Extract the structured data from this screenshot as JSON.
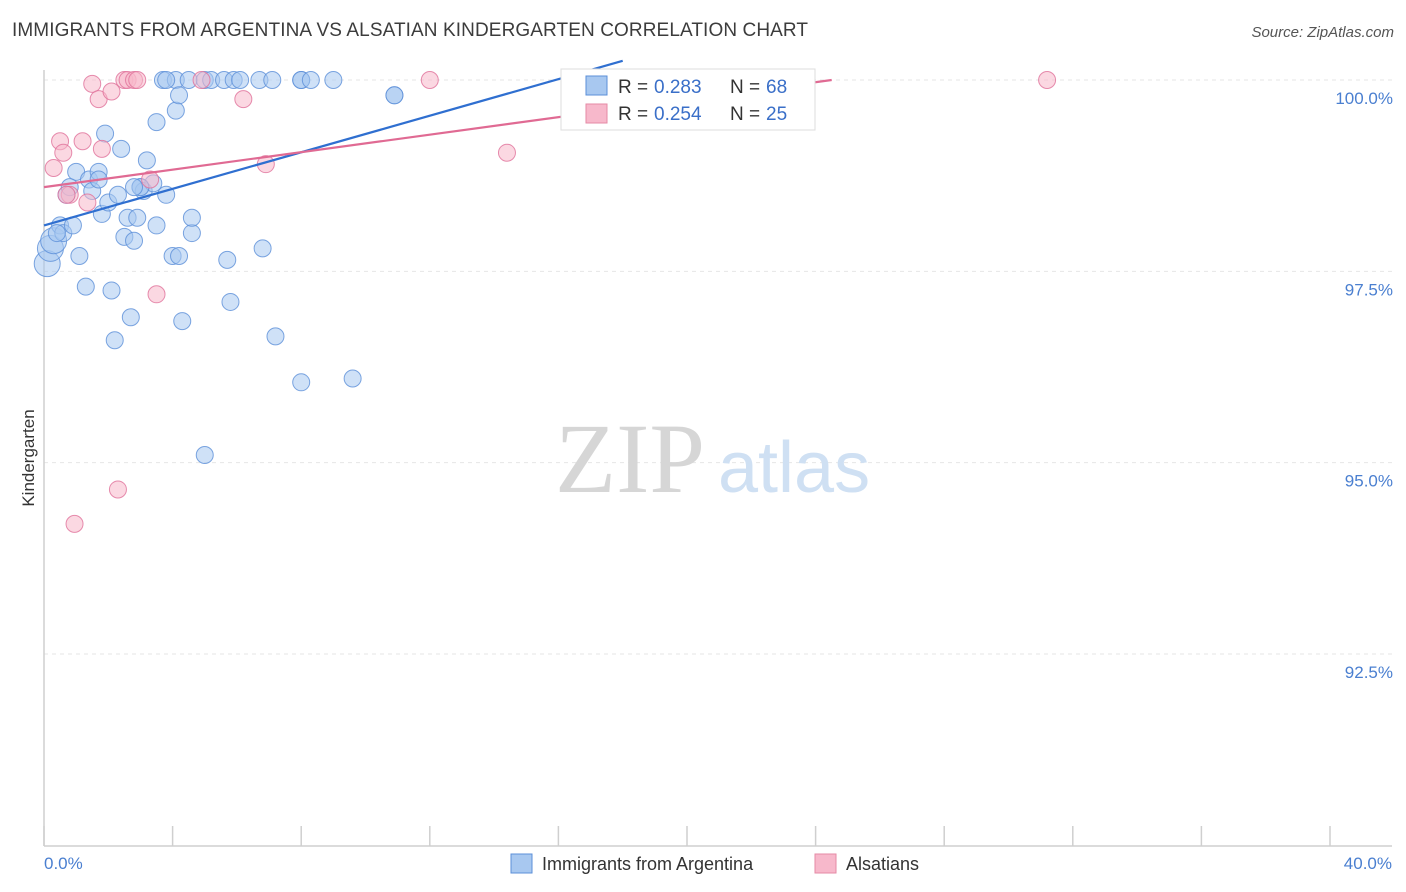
{
  "header": {
    "title": "IMMIGRANTS FROM ARGENTINA VS ALSATIAN KINDERGARTEN CORRELATION CHART",
    "source": "Source: ZipAtlas.com"
  },
  "watermark": {
    "zip": "ZIP",
    "atlas": "atlas"
  },
  "legend": {
    "r_label": "R =",
    "n_label": "N =",
    "entries": [
      {
        "name": "Immigrants from Argentina",
        "r": "0.283",
        "n": "68",
        "fill": "#a8c8f0",
        "stroke": "#5b8fd8"
      },
      {
        "name": "Alsatians",
        "r": "0.254",
        "n": "25",
        "fill": "#f7b8cb",
        "stroke": "#e58aa6"
      }
    ]
  },
  "chart_data": {
    "type": "scatter",
    "title": "IMMIGRANTS FROM ARGENTINA VS ALSATIAN KINDERGARTEN CORRELATION CHART",
    "xlabel": "",
    "ylabel": "Kindergarten",
    "xlim": [
      0,
      40
    ],
    "ylim": [
      90.2,
      100.4
    ],
    "x_tick_labels": [
      "0.0%",
      "40.0%"
    ],
    "y_ticks": [
      92.5,
      95.0,
      97.5,
      100.0
    ],
    "y_tick_labels": [
      "92.5%",
      "95.0%",
      "97.5%",
      "100.0%"
    ],
    "grid": true,
    "series": [
      {
        "name": "Immigrants from Argentina",
        "color": "#5b8fd8",
        "fill": "#a8c8f0",
        "trend": {
          "x": [
            0.0,
            18.0
          ],
          "y": [
            98.1,
            100.25
          ]
        },
        "points": [
          [
            0.1,
            97.6
          ],
          [
            0.2,
            97.8
          ],
          [
            0.3,
            97.9
          ],
          [
            0.5,
            98.1
          ],
          [
            0.6,
            98.0
          ],
          [
            0.7,
            98.5
          ],
          [
            0.9,
            98.1
          ],
          [
            1.0,
            98.8
          ],
          [
            1.1,
            97.7
          ],
          [
            1.3,
            97.3
          ],
          [
            1.4,
            98.7
          ],
          [
            1.5,
            98.55
          ],
          [
            1.7,
            98.8
          ],
          [
            1.8,
            98.25
          ],
          [
            1.9,
            99.3
          ],
          [
            2.0,
            98.4
          ],
          [
            2.1,
            97.25
          ],
          [
            2.2,
            96.6
          ],
          [
            2.3,
            98.5
          ],
          [
            2.4,
            99.1
          ],
          [
            2.5,
            97.95
          ],
          [
            2.6,
            98.2
          ],
          [
            2.7,
            96.9
          ],
          [
            2.8,
            97.9
          ],
          [
            2.9,
            98.2
          ],
          [
            3.0,
            98.6
          ],
          [
            3.1,
            98.55
          ],
          [
            3.2,
            98.95
          ],
          [
            3.4,
            98.65
          ],
          [
            3.5,
            99.45
          ],
          [
            3.5,
            98.1
          ],
          [
            3.8,
            98.5
          ],
          [
            3.7,
            100.0
          ],
          [
            4.0,
            97.7
          ],
          [
            4.1,
            99.6
          ],
          [
            4.1,
            100.0
          ],
          [
            4.2,
            99.8
          ],
          [
            4.2,
            97.7
          ],
          [
            4.3,
            96.85
          ],
          [
            4.5,
            100.0
          ],
          [
            4.6,
            98.0
          ],
          [
            4.6,
            98.2
          ],
          [
            5.0,
            100.0
          ],
          [
            5.0,
            95.1
          ],
          [
            5.2,
            100.0
          ],
          [
            5.6,
            100.0
          ],
          [
            5.7,
            97.65
          ],
          [
            5.8,
            97.1
          ],
          [
            5.9,
            100.0
          ],
          [
            6.1,
            100.0
          ],
          [
            6.7,
            100.0
          ],
          [
            6.8,
            97.8
          ],
          [
            7.1,
            100.0
          ],
          [
            7.2,
            96.65
          ],
          [
            8.0,
            100.0
          ],
          [
            8.0,
            100.0
          ],
          [
            8.3,
            100.0
          ],
          [
            8.0,
            96.05
          ],
          [
            9.0,
            100.0
          ],
          [
            9.6,
            96.1
          ],
          [
            10.9,
            99.8
          ],
          [
            10.9,
            99.8
          ],
          [
            1.7,
            98.7
          ],
          [
            3.0,
            98.6
          ],
          [
            2.8,
            98.6
          ],
          [
            0.4,
            98.0
          ],
          [
            0.8,
            98.6
          ],
          [
            3.8,
            100.0
          ]
        ]
      },
      {
        "name": "Alsatians",
        "color": "#e0709a",
        "fill": "#f7b8cb",
        "trend": {
          "x": [
            0.0,
            24.5
          ],
          "y": [
            98.6,
            100.0
          ]
        },
        "points": [
          [
            0.3,
            98.85
          ],
          [
            0.5,
            99.2
          ],
          [
            0.6,
            99.05
          ],
          [
            0.8,
            98.5
          ],
          [
            0.95,
            94.2
          ],
          [
            1.2,
            99.2
          ],
          [
            1.35,
            98.4
          ],
          [
            1.5,
            99.95
          ],
          [
            1.7,
            99.75
          ],
          [
            1.8,
            99.1
          ],
          [
            2.1,
            99.85
          ],
          [
            2.3,
            94.65
          ],
          [
            2.5,
            100.0
          ],
          [
            2.6,
            100.0
          ],
          [
            2.8,
            100.0
          ],
          [
            2.9,
            100.0
          ],
          [
            3.3,
            98.7
          ],
          [
            3.5,
            97.2
          ],
          [
            4.9,
            100.0
          ],
          [
            6.2,
            99.75
          ],
          [
            6.9,
            98.9
          ],
          [
            12.0,
            100.0
          ],
          [
            14.4,
            99.05
          ],
          [
            31.2,
            100.0
          ],
          [
            0.7,
            98.5
          ]
        ]
      }
    ]
  }
}
